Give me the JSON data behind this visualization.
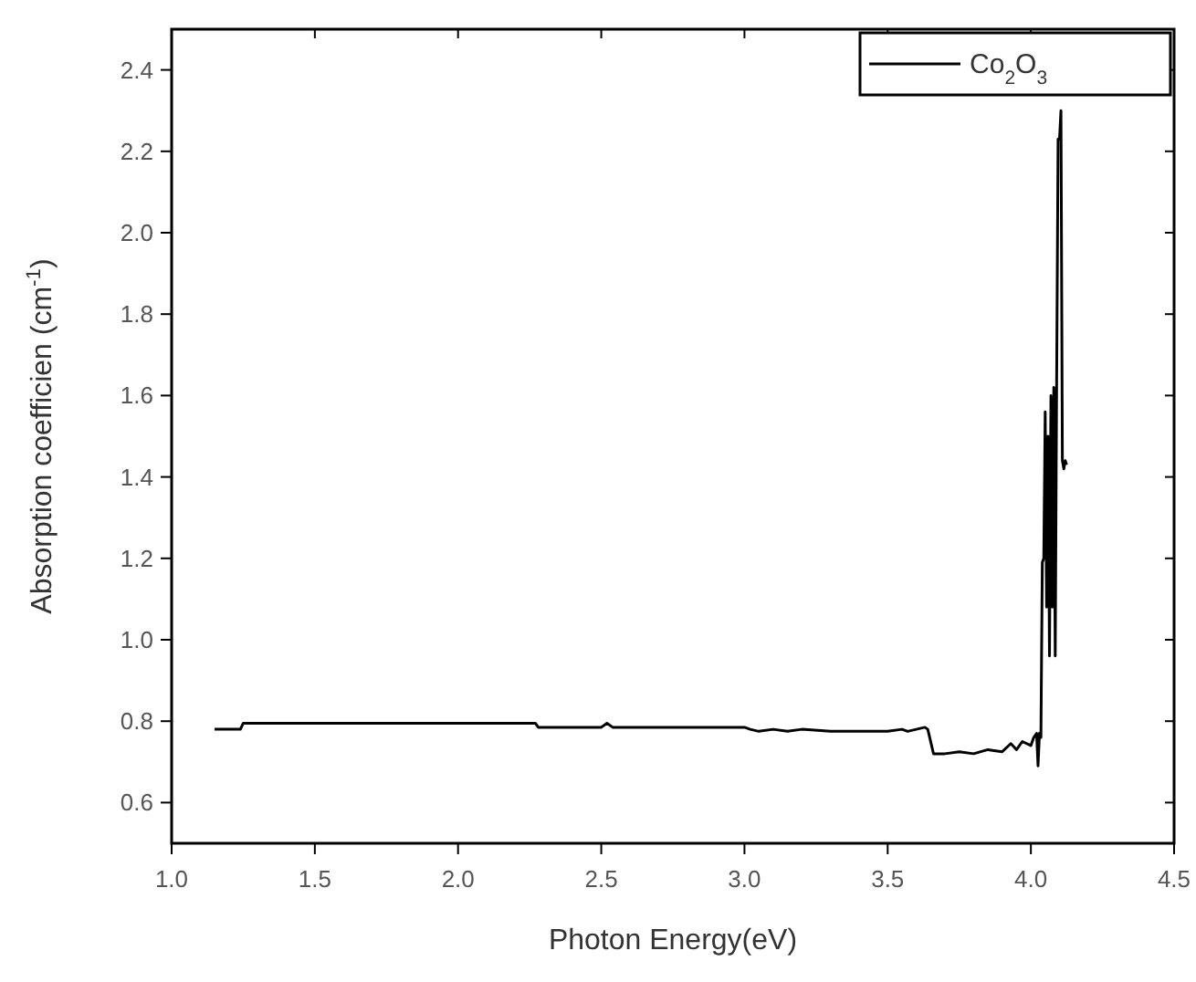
{
  "chart_data": {
    "type": "line",
    "xlabel": "Photon Energy(eV)",
    "ylabel": "Absorption coefficien (cm$^{-1}$)",
    "xlim": [
      1.0,
      4.5
    ],
    "xticks": [
      {
        "value": 1,
        "label": "1.0"
      },
      1.5,
      {
        "value": 2,
        "label": "2.0"
      },
      2.5,
      {
        "value": 3,
        "label": "3.0"
      },
      3.5,
      {
        "value": 4,
        "label": "4.0"
      },
      4.5
    ],
    "ylim": [
      0.5,
      2.5
    ],
    "yticks": [
      0.6,
      0.8,
      {
        "value": 1,
        "label": "1.0"
      },
      1.2,
      1.4,
      1.6,
      1.8,
      {
        "value": 2,
        "label": "2.0"
      },
      2.2,
      2.4
    ],
    "legend": "top right",
    "grid": false,
    "marker": "none",
    "line_style": "solid",
    "series": [
      {
        "name": "Co$_{2}$O$_{3}$",
        "color": "#000000",
        "x": [
          1.15,
          1.24,
          1.25,
          1.6,
          2.0,
          2.27,
          2.28,
          2.5,
          2.52,
          2.54,
          2.8,
          3.0,
          3.02,
          3.05,
          3.1,
          3.15,
          3.2,
          3.3,
          3.4,
          3.5,
          3.55,
          3.57,
          3.6,
          3.63,
          3.64,
          3.66,
          3.7,
          3.75,
          3.8,
          3.85,
          3.9,
          3.93,
          3.95,
          3.97,
          4.0,
          4.01,
          4.02,
          4.025,
          4.03,
          4.035,
          4.04,
          4.045,
          4.05,
          4.055,
          4.06,
          4.065,
          4.07,
          4.075,
          4.08,
          4.085,
          4.09,
          4.095,
          4.1,
          4.105,
          4.11,
          4.115,
          4.12,
          4.125
        ],
        "values": [
          0.78,
          0.78,
          0.795,
          0.795,
          0.795,
          0.795,
          0.785,
          0.785,
          0.795,
          0.785,
          0.785,
          0.785,
          0.78,
          0.775,
          0.78,
          0.775,
          0.78,
          0.775,
          0.775,
          0.775,
          0.78,
          0.775,
          0.78,
          0.785,
          0.78,
          0.72,
          0.72,
          0.725,
          0.72,
          0.73,
          0.725,
          0.745,
          0.73,
          0.75,
          0.74,
          0.76,
          0.77,
          0.69,
          0.77,
          0.76,
          1.19,
          1.2,
          1.56,
          1.08,
          1.5,
          0.96,
          1.6,
          1.08,
          1.62,
          0.96,
          1.64,
          2.23,
          2.23,
          2.3,
          1.44,
          1.42,
          1.44,
          1.43
        ]
      }
    ]
  }
}
